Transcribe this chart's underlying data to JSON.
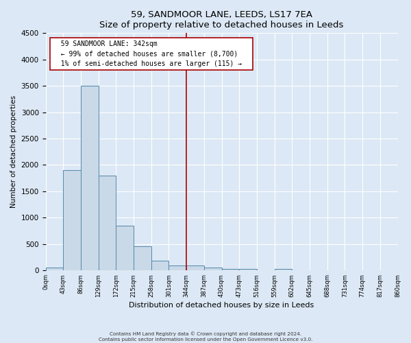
{
  "title": "59, SANDMOOR LANE, LEEDS, LS17 7EA",
  "subtitle": "Size of property relative to detached houses in Leeds",
  "xlabel": "Distribution of detached houses by size in Leeds",
  "ylabel": "Number of detached properties",
  "bin_edges": [
    0,
    43,
    86,
    129,
    172,
    215,
    258,
    301,
    344,
    387,
    430,
    473,
    516,
    559,
    602,
    645,
    688,
    731,
    774,
    817,
    860
  ],
  "bin_labels": [
    "0sqm",
    "43sqm",
    "86sqm",
    "129sqm",
    "172sqm",
    "215sqm",
    "258sqm",
    "301sqm",
    "344sqm",
    "387sqm",
    "430sqm",
    "473sqm",
    "516sqm",
    "559sqm",
    "602sqm",
    "645sqm",
    "688sqm",
    "731sqm",
    "774sqm",
    "817sqm",
    "860sqm"
  ],
  "bar_heights": [
    50,
    1900,
    3500,
    1800,
    850,
    460,
    180,
    90,
    90,
    50,
    35,
    35,
    0,
    35,
    0,
    0,
    0,
    0,
    0,
    0
  ],
  "bar_color": "#c9d9e8",
  "bar_edge_color": "#5588aa",
  "ylim": [
    0,
    4500
  ],
  "yticks": [
    0,
    500,
    1000,
    1500,
    2000,
    2500,
    3000,
    3500,
    4000,
    4500
  ],
  "vline_x": 344,
  "vline_color": "#aa0000",
  "annotation_title": "59 SANDMOOR LANE: 342sqm",
  "annotation_line1": "← 99% of detached houses are smaller (8,700)",
  "annotation_line2": "1% of semi-detached houses are larger (115) →",
  "annotation_box_color": "#ffffff",
  "annotation_box_edge": "#aa0000",
  "footer_line1": "Contains HM Land Registry data © Crown copyright and database right 2024.",
  "footer_line2": "Contains public sector information licensed under the Open Government Licence v3.0.",
  "background_color": "#dce8f5",
  "grid_color": "#ffffff",
  "title_fontsize": 9.5,
  "ylabel_fontsize": 7.5,
  "xlabel_fontsize": 8,
  "ytick_fontsize": 7.5,
  "xtick_fontsize": 6
}
